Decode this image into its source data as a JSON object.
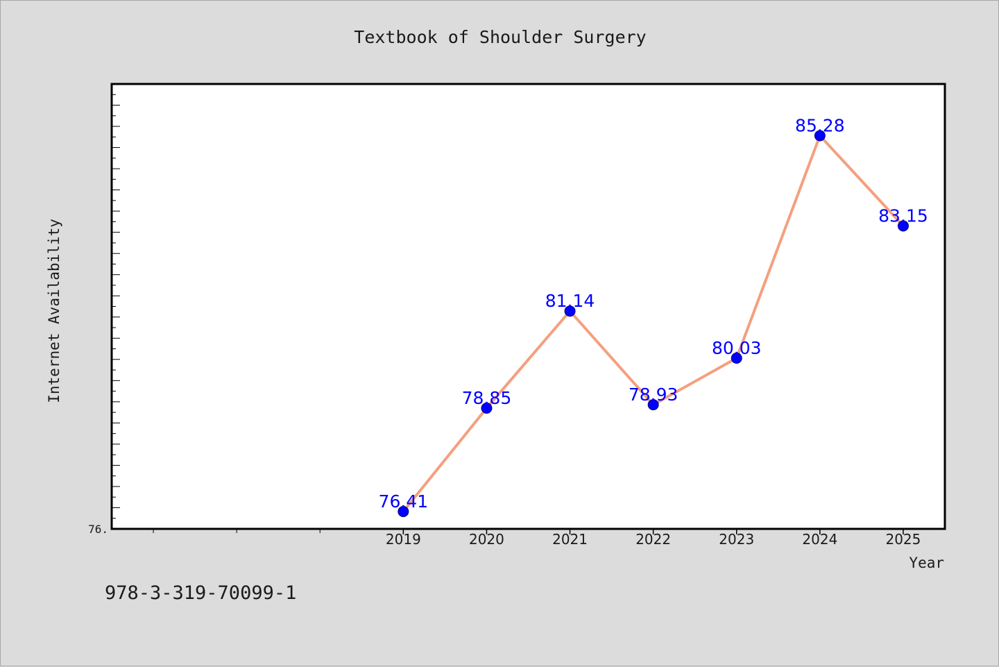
{
  "title": "Textbook of Shoulder Surgery",
  "footer_text": "978-3-319-70099-1",
  "chart_data": {
    "type": "line",
    "title": "Textbook of Shoulder Surgery",
    "xlabel": "Year",
    "ylabel": "Internet Availability",
    "categories": [
      "2019",
      "2020",
      "2021",
      "2022",
      "2023",
      "2024",
      "2025"
    ],
    "series": [
      {
        "values": [
          76.41,
          78.85,
          81.14,
          78.93,
          80.03,
          85.28,
          83.15
        ],
        "labels": [
          "76.41",
          "78.85",
          "81.14",
          "78.93",
          "80.03",
          "85.28",
          "83.15"
        ]
      }
    ],
    "x_tick_labels": [
      "2019",
      "2020",
      "2021",
      "2022",
      "2023",
      "2024",
      "2025"
    ],
    "x_categories_range": [
      2015.5,
      2025.5
    ],
    "y_tick_labels": [
      "76."
    ],
    "ylim": [
      76.0,
      86.5
    ],
    "grid": false,
    "colors": {
      "line": "#f4a07f",
      "marker": "#0000ff",
      "data_label": "#0000ff",
      "plot_background": "#ffffff",
      "page_background": "#dcdcdc"
    }
  }
}
